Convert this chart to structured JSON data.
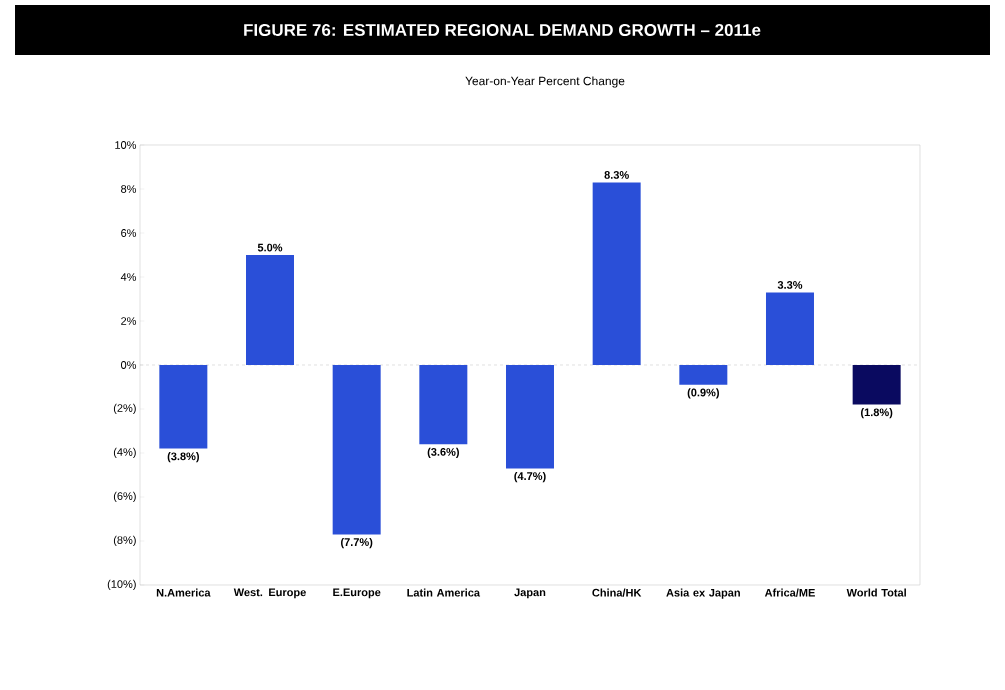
{
  "chart_data": {
    "type": "bar",
    "title": "FIGURE 76: ESTIMATED REGIONAL DEMAND GROWTH – 2011e",
    "subtitle": "Year-on-Year Percent Change",
    "categories": [
      "N.America",
      "West. Europe",
      "E.Europe",
      "Latin America",
      "Japan",
      "China/HK",
      "Asia ex Japan",
      "Africa/ME",
      "World Total"
    ],
    "values": [
      -3.8,
      5.0,
      -7.7,
      -3.6,
      -4.7,
      8.3,
      -0.9,
      3.3,
      -1.8
    ],
    "colors": [
      "#2a4fd8",
      "#2a4fd8",
      "#2a4fd8",
      "#2a4fd8",
      "#2a4fd8",
      "#2a4fd8",
      "#2a4fd8",
      "#2a4fd8",
      "#0a0a60"
    ],
    "value_labels": [
      "(3.8%)",
      "5.0%",
      "(7.7%)",
      "(3.6%)",
      "(4.7%)",
      "8.3%",
      "(0.9%)",
      "3.3%",
      "(1.8%)"
    ],
    "ylim": [
      -10,
      10
    ],
    "yticks": [
      {
        "value": -10,
        "label": "(10%)"
      },
      {
        "value": -8,
        "label": "(8%)"
      },
      {
        "value": -6,
        "label": "(6%)"
      },
      {
        "value": -4,
        "label": "(4%)"
      },
      {
        "value": -2,
        "label": "(2%)"
      },
      {
        "value": 0,
        "label": "0%"
      },
      {
        "value": 2,
        "label": "2%"
      },
      {
        "value": 4,
        "label": "4%"
      },
      {
        "value": 6,
        "label": "6%"
      },
      {
        "value": 8,
        "label": "8%"
      },
      {
        "value": 10,
        "label": "10%"
      }
    ],
    "ref_lines": [
      {
        "axis": "y",
        "value": 0,
        "line_style": "dashed"
      }
    ],
    "grid": false
  }
}
